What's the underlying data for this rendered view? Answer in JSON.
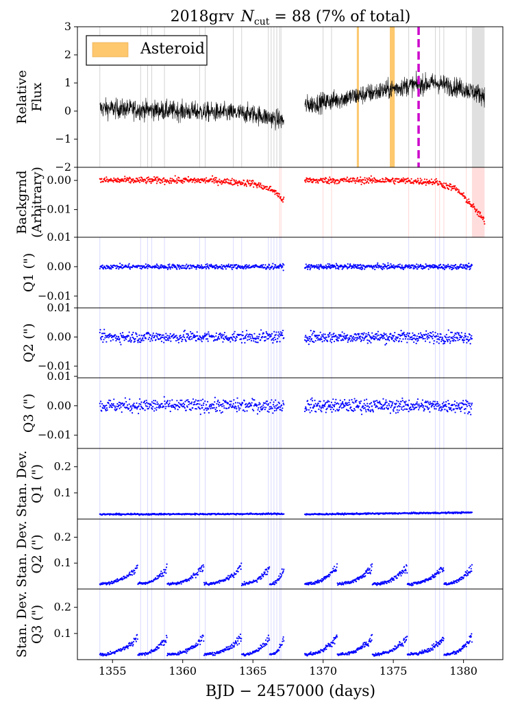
{
  "chart_data": {
    "type": "multi-panel scatter/line",
    "title_prefix": "2018grv",
    "title_ncut_label": "N",
    "title_ncut_sub": "cut",
    "title_suffix": " = 88 (7% of total)",
    "xlabel": "BJD − 2457000 (days)",
    "xlim": [
      1352.5,
      1382.8
    ],
    "xticks": [
      1355,
      1360,
      1365,
      1370,
      1375,
      1380
    ],
    "data_segments": [
      [
        1354.1,
        1367.2
      ],
      [
        1368.7,
        1381.5
      ]
    ],
    "cut_lines_gray": [
      1354.1,
      1357.0,
      1357.5,
      1357.8,
      1358.7,
      1361.2,
      1361.6,
      1363.6,
      1364.2,
      1366.1,
      1366.3,
      1366.5,
      1366.7,
      1366.9,
      1367.0,
      1370.0,
      1370.6,
      1376.1,
      1378.0,
      1378.3,
      1378.6,
      1380.2
    ],
    "gray_band": [
      1380.6,
      1381.5
    ],
    "asteroid_intervals": [
      [
        1372.4,
        1372.55
      ],
      [
        1374.75,
        1375.1
      ]
    ],
    "asteroid_color": "#fdc86e",
    "asteroid_legend": "Asteroid",
    "event_line": {
      "x": 1376.8,
      "color": "#cc00cc"
    },
    "panels": [
      {
        "id": "flux",
        "ylabel": [
          "Relative",
          "Flux"
        ],
        "ylim": [
          -2,
          3
        ],
        "yticks": [
          -2,
          -1,
          0,
          1,
          2,
          3
        ],
        "ytick_labels": [
          "−2",
          "−1",
          "0",
          "1",
          "2",
          "3"
        ],
        "color": "#000000",
        "style": "line",
        "trend": [
          [
            1354.1,
            0.1
          ],
          [
            1360.0,
            0.0
          ],
          [
            1365.0,
            -0.1
          ],
          [
            1367.2,
            -0.35
          ],
          [
            1368.7,
            0.2
          ],
          [
            1372.0,
            0.5
          ],
          [
            1376.0,
            0.9
          ],
          [
            1378.0,
            1.0
          ],
          [
            1380.0,
            0.8
          ],
          [
            1381.5,
            0.55
          ]
        ],
        "noise": 0.25
      },
      {
        "id": "background",
        "ylabel": [
          "Backgrnd",
          "(Arbitrary)"
        ],
        "ylim": [
          -0.0195,
          0.0045
        ],
        "yticks": [
          0.0,
          -0.01
        ],
        "ytick_labels": [
          "0.00",
          "−0.01"
        ],
        "color": "#ff0000",
        "style": "points",
        "trend": [
          [
            1354.1,
            0.0
          ],
          [
            1362.0,
            0.0
          ],
          [
            1365.0,
            -0.001
          ],
          [
            1366.5,
            -0.0035
          ],
          [
            1367.2,
            -0.007
          ],
          [
            1368.7,
            0.0
          ],
          [
            1375.0,
            0.0
          ],
          [
            1378.0,
            -0.0005
          ],
          [
            1379.5,
            -0.003
          ],
          [
            1380.5,
            -0.008
          ],
          [
            1381.5,
            -0.014
          ]
        ],
        "noise": 0.0008
      },
      {
        "id": "q1",
        "ylabel": [
          "Q1 (\")"
        ],
        "ylim": [
          -0.014,
          0.01
        ],
        "yticks": [
          0.01,
          0.0,
          -0.01
        ],
        "ytick_labels": [
          "0.01",
          "0.00",
          "−0.01"
        ],
        "color": "#0000ff",
        "style": "points",
        "trend": [
          [
            1354.1,
            0.0
          ],
          [
            1367.2,
            0.0
          ],
          [
            1368.7,
            0.0
          ],
          [
            1380.6,
            0.0
          ]
        ],
        "noise": 0.0006
      },
      {
        "id": "q2",
        "ylabel": [
          "Q2 (\")"
        ],
        "ylim": [
          -0.014,
          0.01
        ],
        "yticks": [
          0.01,
          0.0,
          -0.01
        ],
        "ytick_labels": [
          "0.01",
          "0.00",
          "−0.01"
        ],
        "color": "#0000ff",
        "style": "points",
        "trend": [
          [
            1354.1,
            0.0
          ],
          [
            1367.2,
            0.0
          ],
          [
            1368.7,
            0.0
          ],
          [
            1380.6,
            0.0
          ]
        ],
        "noise": 0.0014
      },
      {
        "id": "q3",
        "ylabel": [
          "Q3 (\")"
        ],
        "ylim": [
          -0.0145,
          0.0095
        ],
        "yticks": [
          0.01,
          0.0,
          -0.01
        ],
        "ytick_labels": [
          "0.01",
          "0.00",
          "−0.01"
        ],
        "color": "#0000ff",
        "style": "points",
        "trend": [
          [
            1354.1,
            0.0
          ],
          [
            1367.2,
            0.0
          ],
          [
            1368.7,
            0.0
          ],
          [
            1380.6,
            0.0
          ]
        ],
        "noise": 0.0016
      },
      {
        "id": "sd_q1",
        "ylabel": [
          "Stan. Dev.",
          "Q1 (\")"
        ],
        "ylim": [
          0.0,
          0.27
        ],
        "yticks": [
          0.1,
          0.2
        ],
        "ytick_labels": [
          "0.1",
          "0.2"
        ],
        "color": "#0000ff",
        "style": "points",
        "trend": [
          [
            1354.1,
            0.018
          ],
          [
            1367.2,
            0.02
          ],
          [
            1368.7,
            0.018
          ],
          [
            1380.6,
            0.025
          ]
        ],
        "noise": 0.002,
        "ramps": false
      },
      {
        "id": "sd_q2",
        "ylabel": [
          "Stan. Dev.",
          "Q2 (\")"
        ],
        "ylim": [
          0.0,
          0.27
        ],
        "yticks": [
          0.1,
          0.2
        ],
        "ytick_labels": [
          "0.1",
          "0.2"
        ],
        "color": "#0000ff",
        "style": "points",
        "trend": [
          [
            1354.1,
            0.02
          ],
          [
            1380.6,
            0.02
          ]
        ],
        "noise": 0.004,
        "ramps": true,
        "ramp_max": 0.08
      },
      {
        "id": "sd_q3",
        "ylabel": [
          "Stan. Dev.",
          "Q3 (\")"
        ],
        "ylim": [
          0.0,
          0.27
        ],
        "yticks": [
          0.1,
          0.2
        ],
        "ytick_labels": [
          "0.1",
          "0.2"
        ],
        "color": "#0000ff",
        "style": "points",
        "trend": [
          [
            1354.1,
            0.02
          ],
          [
            1380.6,
            0.02
          ]
        ],
        "noise": 0.004,
        "ramps": true,
        "ramp_max": 0.08
      }
    ],
    "ramp_segments": [
      [
        1354.1,
        1356.8
      ],
      [
        1356.9,
        1358.9
      ],
      [
        1359.0,
        1361.5
      ],
      [
        1361.6,
        1364.2
      ],
      [
        1364.3,
        1366.2
      ],
      [
        1366.3,
        1367.2
      ],
      [
        1368.7,
        1371.0
      ],
      [
        1371.1,
        1373.5
      ],
      [
        1373.6,
        1376.0
      ],
      [
        1376.1,
        1378.6
      ],
      [
        1378.7,
        1380.6
      ]
    ]
  }
}
